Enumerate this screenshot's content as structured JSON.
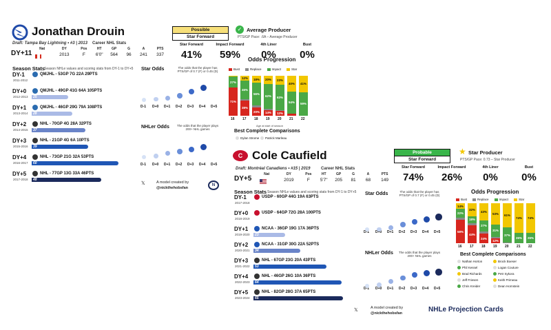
{
  "colors": {
    "navy": "#1b2a5c",
    "blue": "#1f56b5",
    "mid": "#6a84c8",
    "light": "#aabae6",
    "bust": "#d7261e",
    "replace": "#8a8a8a",
    "impact": "#4aa846",
    "star": "#f2c700",
    "possible": "#f7e07a",
    "probable": "#39b54a",
    "lightning": "#1f4aa8",
    "habs": "#c8102e"
  },
  "card1": {
    "name": "Jonathan Drouin",
    "draft": "Draft: Tampa Bay Lightning • #3 | 2013",
    "career_label": "Career NHL Stats",
    "dy": "DY+11",
    "header": [
      "Nat",
      "DY",
      "Pos",
      "HT",
      "GP",
      "G",
      "A",
      "PTS"
    ],
    "values": [
      "",
      "2013",
      "F",
      "6'0\"",
      "564",
      "96",
      "241",
      "337"
    ],
    "prob": {
      "top": "Possible",
      "bottom": "Star Forward"
    },
    "verdict": "Average Producer",
    "verdict_sub": "PTS/GP Pace: .6A – Average Producer",
    "pct_labels": [
      "Star Forward",
      "Impact Forward",
      "4th Liner",
      "Bust"
    ],
    "pct_values": [
      "41%",
      "59%",
      "0%",
      "0%"
    ],
    "season_stats": "Season Stats",
    "season_note": "Season NHLe values and scoring stats from DY-1 to DY+5",
    "rows": [
      {
        "dy": "DY-1",
        "yrs": "2011-2012",
        "line": "QMJHL - 53GP 7G 22A 29PTS",
        "bar": "",
        "lg": "qmjhl"
      },
      {
        "dy": "DY+0",
        "yrs": "2012-2013",
        "line": "QMJHL - 49GP 41G 64A 105PTS",
        "bar": "25",
        "lg": "qmjhl"
      },
      {
        "dy": "DY+1",
        "yrs": "2013-2014",
        "line": "QMJHL - 46GP 29G 79A 108PTS",
        "bar": "28",
        "lg": "qmjhl"
      },
      {
        "dy": "DY+2",
        "yrs": "2014-2015",
        "line": "NHL - 70GP 4G 28A 32PTS",
        "bar": "37",
        "lg": "nhl"
      },
      {
        "dy": "DY+3",
        "yrs": "2015-2016",
        "line": "NHL - 21GP 4G 6A 10PTS",
        "bar": "39",
        "lg": "nhl"
      },
      {
        "dy": "DY+4",
        "yrs": "2016-2017",
        "line": "NHL - 73GP 21G 32A 53PTS",
        "bar": "60",
        "lg": "nhl"
      },
      {
        "dy": "DY+5",
        "yrs": "2017-2018",
        "line": "NHL - 77GP 13G 33A 46PTS",
        "bar": "48",
        "lg": "nhl"
      }
    ],
    "star_odds": "Star Odds",
    "star_desc": "The odds that the player has PTS/GP of 0.7 (F) or 0.45 (D)",
    "nhler_odds": "NHLer Odds",
    "nhler_desc": "The odds that the player plays 200+ NHL games",
    "xlabels": [
      "D-1",
      "D+0",
      "D+1",
      "D+2",
      "D+3",
      "D+4",
      "D+5"
    ],
    "odds_prog": "Odds Progression",
    "legend": [
      "Bust",
      "Replace",
      "Impact",
      "Star"
    ],
    "ages": [
      "16",
      "17",
      "18",
      "19",
      "20",
      "21",
      "22"
    ],
    "age_note": "Age at start of season",
    "best": "Best Complete Comparisons",
    "comps": [
      "Dylan Strome",
      "Patrick Marleau"
    ],
    "credit1": "A model created by",
    "credit2": "@nickthehobsfan"
  },
  "card2": {
    "name": "Cole Caufield",
    "draft": "Draft: Montréal Canadiens • #15 | 2019",
    "career_label": "Career NHL Stats",
    "dy": "DY+5",
    "header": [
      "Nat",
      "DY",
      "Pos",
      "HT",
      "GP",
      "G",
      "A",
      "PTS"
    ],
    "values": [
      "",
      "2019",
      "F",
      "5'7\"",
      "205",
      "81",
      "68",
      "149"
    ],
    "prob": {
      "top": "Probable",
      "bottom": "Star Forward"
    },
    "verdict": "Star Producer",
    "verdict_sub": "PTS/GP Pace: 0.73 – Star Producer",
    "pct_labels": [
      "Star Forward",
      "Impact Forward",
      "4th Liner",
      "Bust"
    ],
    "pct_values": [
      "74%",
      "26%",
      "0%",
      "0%"
    ],
    "season_stats": "Season Stats",
    "season_note": "Season NHLe values and scoring stats from DY-1 to DY+5",
    "rows": [
      {
        "dy": "DY-1",
        "yrs": "2017-2018",
        "line": "USDP - 60GP 44G 19A 63PTS",
        "bar": "",
        "lg": "usdp"
      },
      {
        "dy": "DY+0",
        "yrs": "2018-2019",
        "line": "USDP - 64GP 72G 28A 100PTS",
        "bar": "",
        "lg": "usdp"
      },
      {
        "dy": "DY+1",
        "yrs": "2019-2020",
        "line": "NCAA - 36GP 19G 17A 36PTS",
        "bar": "23",
        "lg": "ncaa"
      },
      {
        "dy": "DY+2",
        "yrs": "2020-2021",
        "line": "NCAA - 31GP 30G 22A 52PTS",
        "bar": "34",
        "lg": "ncaa"
      },
      {
        "dy": "DY+3",
        "yrs": "2021-2022",
        "line": "NHL - 67GP 23G 20A 43PTS",
        "bar": "53",
        "lg": "nhl"
      },
      {
        "dy": "DY+4",
        "yrs": "2022-2023",
        "line": "NHL - 46GP 26G 10A 36PTS",
        "bar": "64",
        "lg": "nhl"
      },
      {
        "dy": "DY+5",
        "yrs": "2023-2024",
        "line": "NHL - 82GP 28G 37A 65PTS",
        "bar": "65",
        "lg": "nhl"
      }
    ],
    "star_odds": "Star Odds",
    "star_desc": "The odds that the player has PTS/GP of 0.7 (F) or 0.45 (D)",
    "nhler_odds": "NHLer Odds",
    "nhler_desc": "The odds that the player plays 200+ NHL games",
    "xlabels": [
      "D-1",
      "D+0",
      "D+1",
      "D+2",
      "D+3",
      "D+4",
      "D+5"
    ],
    "odds_prog": "Odds Progression",
    "legend": [
      "Bust",
      "Replace",
      "Impact",
      "Star"
    ],
    "ages": [
      "16",
      "17",
      "18",
      "19",
      "20",
      "21",
      "22"
    ],
    "age_note": "Age at start of season",
    "best": "Best Complete Comparisons",
    "comps": [
      "Nathan Horton",
      "Brock Boeser",
      "Phil Kessel",
      "Logan Couture",
      "Brad Richards",
      "Petr Sykora",
      "Jeff Friesen",
      "Keith Primeau",
      "Chris Kreider",
      "Dean Hornstein"
    ],
    "credit1": "A model created by",
    "credit2": "@nickthehobsfan",
    "brand": "NHLe Projection Cards"
  },
  "chart_data": [
    {
      "type": "bar",
      "title": "Odds Progression",
      "categories": [
        "16",
        "17",
        "18",
        "19",
        "20",
        "21",
        "22"
      ],
      "xlabel": "Age at start of season",
      "series": [
        {
          "name": "Bust",
          "values": [
            71,
            38,
            20,
            14,
            12,
            6,
            0
          ]
        },
        {
          "name": "Replace",
          "values": [
            0,
            4,
            6,
            4,
            2,
            0,
            0
          ]
        },
        {
          "name": "Impact",
          "values": [
            27,
            46,
            56,
            62,
            63,
            54,
            59
          ]
        },
        {
          "name": "Star",
          "values": [
            2,
            12,
            18,
            20,
            23,
            40,
            41
          ]
        }
      ]
    },
    {
      "type": "bar",
      "title": "Odds Progression",
      "categories": [
        "16",
        "17",
        "18",
        "19",
        "20",
        "21",
        "22"
      ],
      "xlabel": "Age at start of season",
      "series": [
        {
          "name": "Bust",
          "values": [
            58,
            44,
            24,
            12,
            0,
            0,
            0
          ]
        },
        {
          "name": "Replace",
          "values": [
            6,
            6,
            6,
            4,
            2,
            0,
            0
          ]
        },
        {
          "name": "Impact",
          "values": [
            22,
            18,
            27,
            31,
            37,
            26,
            26
          ]
        },
        {
          "name": "Star",
          "values": [
            14,
            32,
            43,
            53,
            61,
            74,
            74
          ]
        }
      ]
    }
  ]
}
